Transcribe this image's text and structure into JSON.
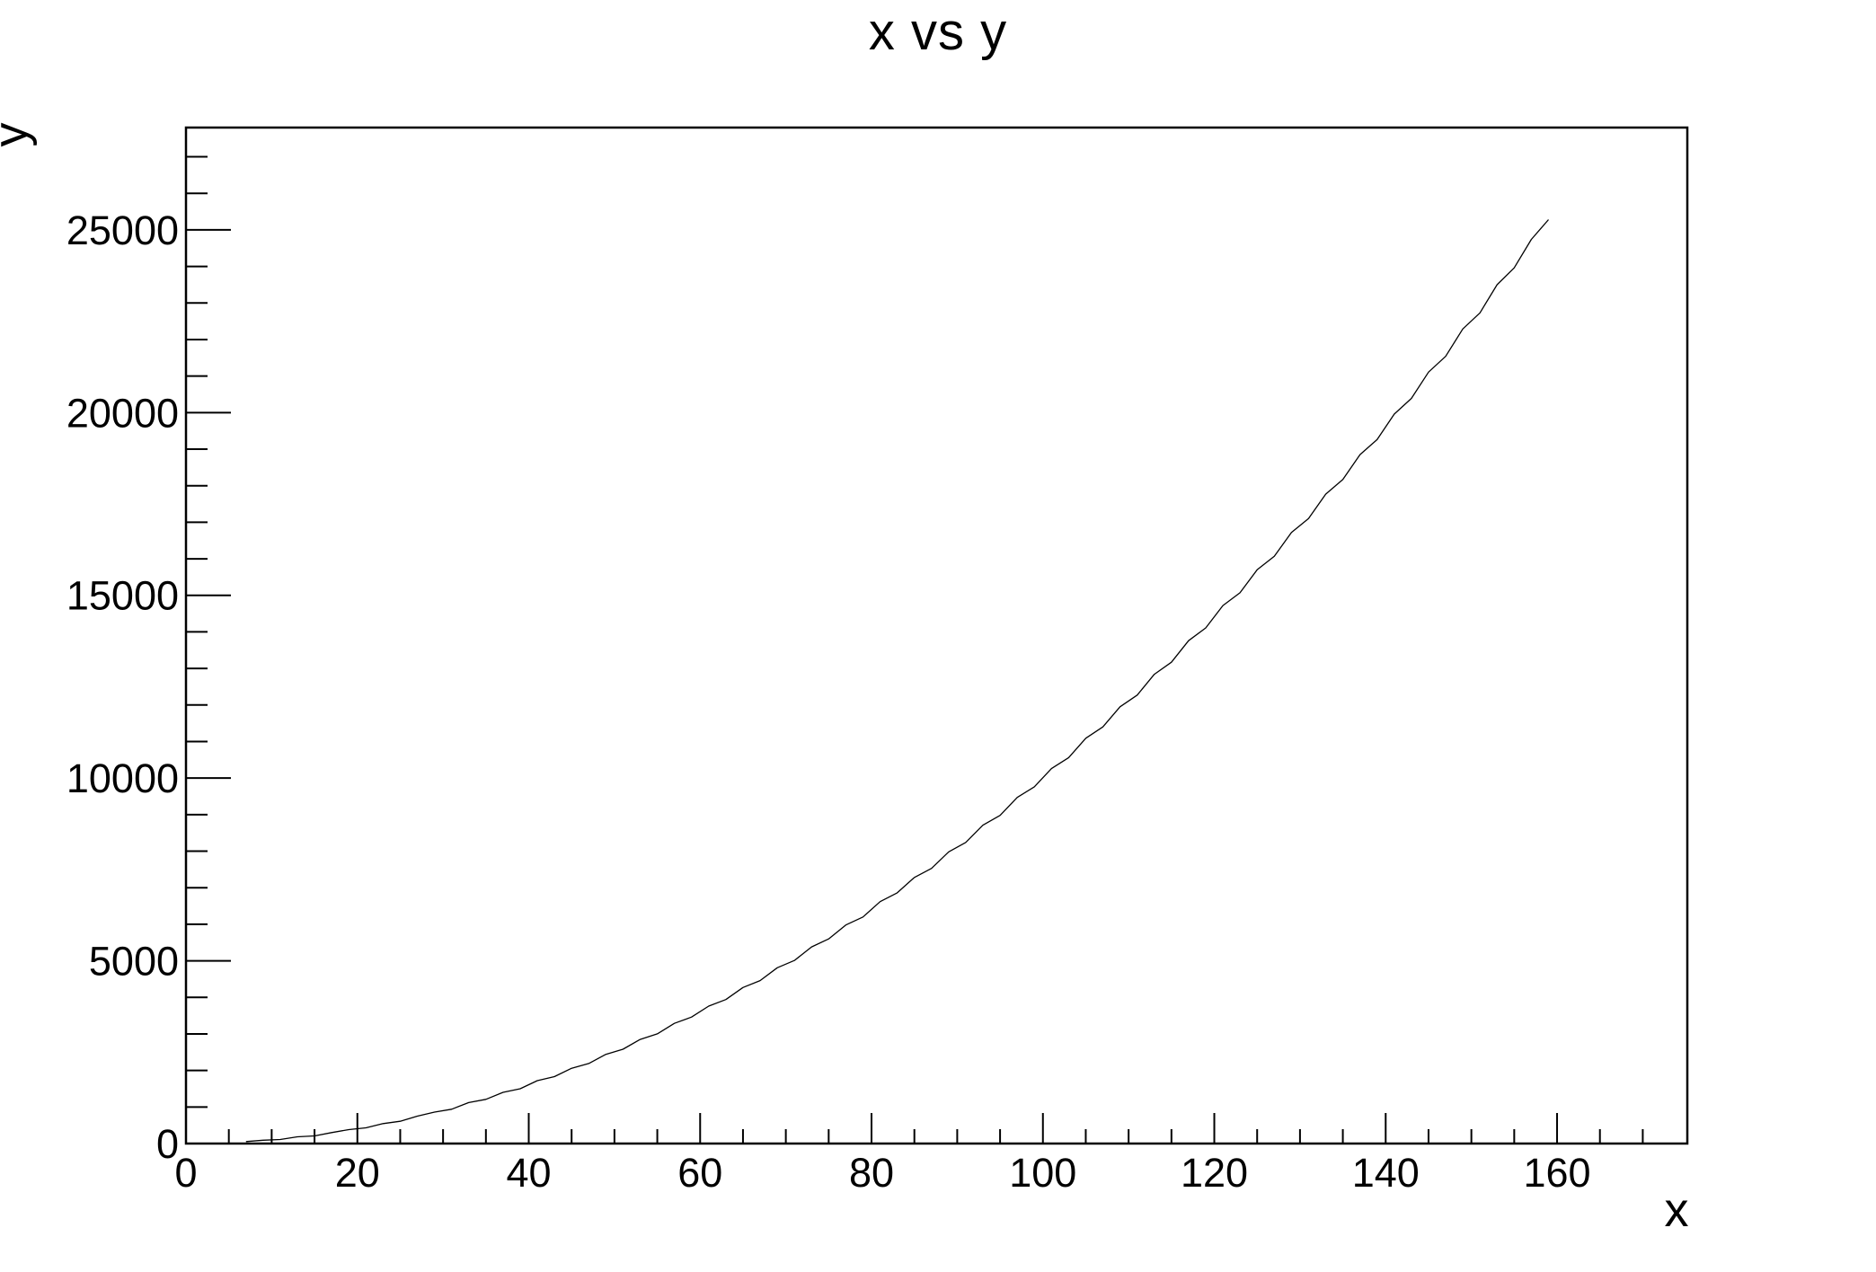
{
  "page": {
    "background": "#ffffff",
    "foreground": "#000000"
  },
  "chart_data": {
    "type": "line",
    "title": "x vs y",
    "xlabel": "x",
    "ylabel": "y",
    "xlim": [
      0,
      175.2
    ],
    "ylim": [
      0,
      27800
    ],
    "grid": false,
    "legend": null,
    "line_color": "#000000",
    "axis_color": "#000000",
    "x_major_step": 20,
    "x_minor_step": 5,
    "y_major_step": 5000,
    "y_minor_step": 1000,
    "x_tick_labels": [
      "0",
      "20",
      "40",
      "60",
      "80",
      "100",
      "120",
      "140",
      "160"
    ],
    "y_tick_labels": [
      "0",
      "5000",
      "10000",
      "15000",
      "20000",
      "25000"
    ],
    "points": [
      [
        7,
        55
      ],
      [
        9,
        90
      ],
      [
        11,
        110
      ],
      [
        13,
        185
      ],
      [
        15,
        210
      ],
      [
        17,
        300
      ],
      [
        19,
        380
      ],
      [
        21,
        430
      ],
      [
        23,
        545
      ],
      [
        25,
        610
      ],
      [
        27,
        750
      ],
      [
        29,
        860
      ],
      [
        31,
        940
      ],
      [
        33,
        1120
      ],
      [
        35,
        1210
      ],
      [
        37,
        1400
      ],
      [
        39,
        1500
      ],
      [
        41,
        1720
      ],
      [
        43,
        1830
      ],
      [
        45,
        2060
      ],
      [
        47,
        2190
      ],
      [
        49,
        2440
      ],
      [
        51,
        2580
      ],
      [
        53,
        2850
      ],
      [
        55,
        3000
      ],
      [
        57,
        3290
      ],
      [
        59,
        3460
      ],
      [
        61,
        3760
      ],
      [
        63,
        3940
      ],
      [
        65,
        4270
      ],
      [
        67,
        4460
      ],
      [
        69,
        4810
      ],
      [
        71,
        5010
      ],
      [
        73,
        5380
      ],
      [
        75,
        5600
      ],
      [
        77,
        5980
      ],
      [
        79,
        6200
      ],
      [
        81,
        6620
      ],
      [
        83,
        6860
      ],
      [
        85,
        7280
      ],
      [
        87,
        7530
      ],
      [
        89,
        7980
      ],
      [
        91,
        8240
      ],
      [
        93,
        8710
      ],
      [
        95,
        8980
      ],
      [
        97,
        9470
      ],
      [
        99,
        9760
      ],
      [
        101,
        10260
      ],
      [
        103,
        10560
      ],
      [
        105,
        11090
      ],
      [
        107,
        11400
      ],
      [
        109,
        11950
      ],
      [
        111,
        12270
      ],
      [
        113,
        12840
      ],
      [
        115,
        13170
      ],
      [
        117,
        13760
      ],
      [
        119,
        14110
      ],
      [
        121,
        14720
      ],
      [
        123,
        15070
      ],
      [
        125,
        15700
      ],
      [
        127,
        16070
      ],
      [
        129,
        16720
      ],
      [
        131,
        17100
      ],
      [
        133,
        17770
      ],
      [
        135,
        18170
      ],
      [
        137,
        18850
      ],
      [
        139,
        19260
      ],
      [
        141,
        19960
      ],
      [
        143,
        20390
      ],
      [
        145,
        21110
      ],
      [
        147,
        21540
      ],
      [
        149,
        22290
      ],
      [
        151,
        22730
      ],
      [
        153,
        23500
      ],
      [
        155,
        23960
      ],
      [
        157,
        24740
      ],
      [
        159,
        25281
      ]
    ]
  }
}
